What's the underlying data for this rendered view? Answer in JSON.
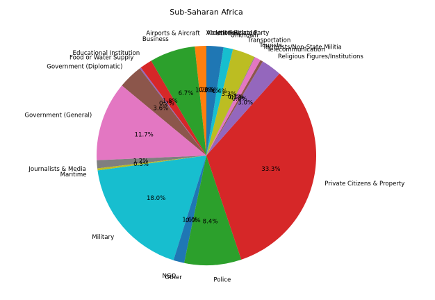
{
  "chart_data": {
    "type": "pie",
    "title": "Sub-Saharan Africa",
    "start_angle_deg": 90,
    "direction": "counterclockwise",
    "categories": [
      "Abortion Related",
      "Airports & Aircraft",
      "Business",
      "Educational Institution",
      "Food or Water Supply",
      "Government (Diplomatic)",
      "Government (General)",
      "Journalists & Media",
      "Maritime",
      "Military",
      "NGO",
      "Other",
      "Police",
      "Private Citizens & Property",
      "Religious Figures/Institutions",
      "Telecommunication",
      "Terrorists/Non-State Militia",
      "Tourists",
      "Transportation",
      "Unknown",
      "Utilities",
      "Violent Political Party"
    ],
    "values": [
      0.0,
      1.7,
      6.7,
      1.8,
      0.2,
      3.6,
      11.7,
      1.2,
      0.3,
      18.0,
      1.6,
      0.0,
      8.4,
      33.3,
      3.0,
      0.4,
      0.9,
      0.1,
      3.3,
      1.4,
      2.5,
      0.0
    ],
    "value_labels": [
      "0.0%",
      "1.7%",
      "6.7%",
      "1.8%",
      "0.2%",
      "3.6%",
      "11.7%",
      "1.2%",
      "0.3%",
      "18.0%",
      "1.6%",
      "0.0%",
      "8.4%",
      "33.3%",
      "3.0%",
      "0.4%",
      "0.9%",
      "0.1%",
      "3.3%",
      "1.4%",
      "2.5%",
      "0.0%"
    ],
    "colors": [
      "#1f77b4",
      "#ff7f0e",
      "#2ca02c",
      "#d62728",
      "#9467bd",
      "#8c564b",
      "#e377c2",
      "#7f7f7f",
      "#bcbd22",
      "#17becf",
      "#1f77b4",
      "#ff7f0e",
      "#2ca02c",
      "#d62728",
      "#9467bd",
      "#8c564b",
      "#e377c2",
      "#7f7f7f",
      "#bcbd22",
      "#17becf",
      "#1f77b4",
      "#ff7f0e"
    ]
  }
}
